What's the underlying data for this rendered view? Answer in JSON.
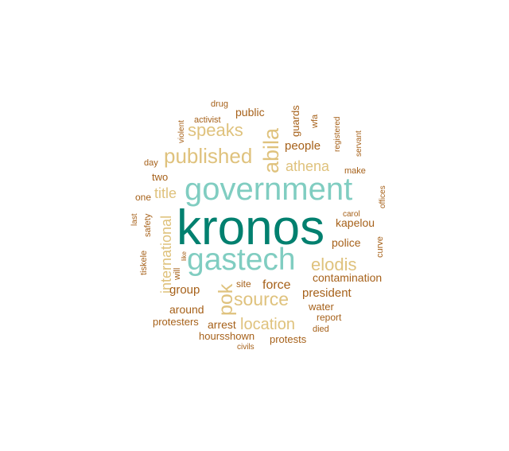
{
  "colors": {
    "dark_teal": "#01806f",
    "light_teal": "#80cdc1",
    "tan": "#dfc27d",
    "brown": "#a6611a"
  },
  "words": [
    {
      "text": "kronos",
      "color": "dark_teal"
    },
    {
      "text": "government",
      "color": "light_teal"
    },
    {
      "text": "gastech",
      "color": "light_teal"
    },
    {
      "text": "published",
      "color": "tan"
    },
    {
      "text": "abila",
      "color": "tan"
    },
    {
      "text": "speaks",
      "color": "tan"
    },
    {
      "text": "source",
      "color": "tan"
    },
    {
      "text": "location",
      "color": "tan"
    },
    {
      "text": "elodis",
      "color": "tan"
    },
    {
      "text": "pok",
      "color": "tan"
    },
    {
      "text": "athena",
      "color": "tan"
    },
    {
      "text": "international",
      "color": "tan"
    },
    {
      "text": "title",
      "color": "tan"
    },
    {
      "text": "people",
      "color": "brown"
    },
    {
      "text": "force",
      "color": "brown"
    },
    {
      "text": "president",
      "color": "brown"
    },
    {
      "text": "group",
      "color": "brown"
    },
    {
      "text": "contamination",
      "color": "brown"
    },
    {
      "text": "police",
      "color": "brown"
    },
    {
      "text": "kapelou",
      "color": "brown"
    },
    {
      "text": "public",
      "color": "brown"
    },
    {
      "text": "guards",
      "color": "brown"
    },
    {
      "text": "around",
      "color": "brown"
    },
    {
      "text": "arrest",
      "color": "brown"
    },
    {
      "text": "hoursshown",
      "color": "brown"
    },
    {
      "text": "protesters",
      "color": "brown"
    },
    {
      "text": "protests",
      "color": "brown"
    },
    {
      "text": "water",
      "color": "brown"
    },
    {
      "text": "report",
      "color": "brown"
    },
    {
      "text": "died",
      "color": "brown"
    },
    {
      "text": "site",
      "color": "brown"
    },
    {
      "text": "two",
      "color": "brown"
    },
    {
      "text": "one",
      "color": "brown"
    },
    {
      "text": "day",
      "color": "brown"
    },
    {
      "text": "drug",
      "color": "brown"
    },
    {
      "text": "activist",
      "color": "brown"
    },
    {
      "text": "violent",
      "color": "brown"
    },
    {
      "text": "wfa",
      "color": "brown"
    },
    {
      "text": "registered",
      "color": "brown"
    },
    {
      "text": "servant",
      "color": "brown"
    },
    {
      "text": "make",
      "color": "brown"
    },
    {
      "text": "offices",
      "color": "brown"
    },
    {
      "text": "carol",
      "color": "brown"
    },
    {
      "text": "curve",
      "color": "brown"
    },
    {
      "text": "last",
      "color": "brown"
    },
    {
      "text": "safety",
      "color": "brown"
    },
    {
      "text": "tiskele",
      "color": "brown"
    },
    {
      "text": "will",
      "color": "brown"
    },
    {
      "text": "like",
      "color": "brown"
    },
    {
      "text": "civils",
      "color": "brown"
    }
  ]
}
